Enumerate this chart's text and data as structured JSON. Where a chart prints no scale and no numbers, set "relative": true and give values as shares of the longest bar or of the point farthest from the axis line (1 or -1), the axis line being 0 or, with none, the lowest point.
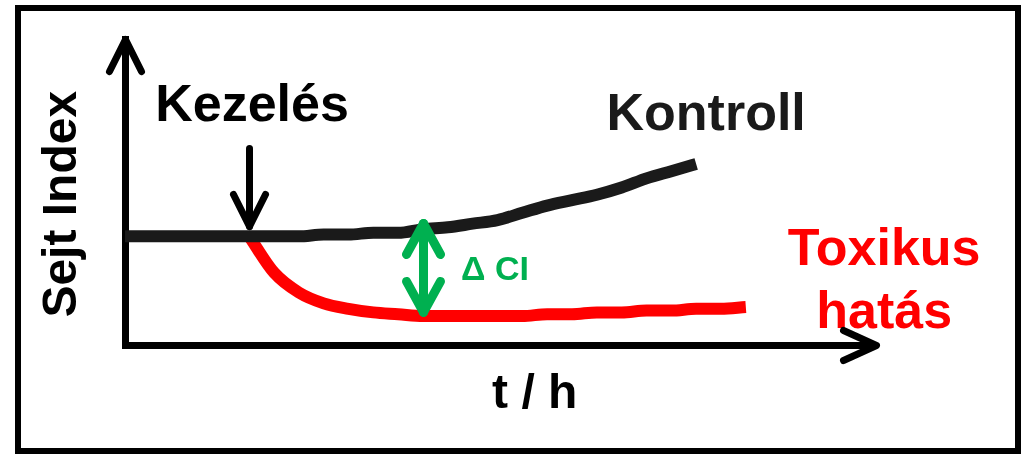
{
  "chart_data": {
    "type": "line",
    "relative": true,
    "xlabel": "t / h",
    "ylabel": "Sejt Index",
    "categories": [
      null,
      null,
      null,
      null,
      null,
      null,
      null,
      null,
      null,
      null,
      null,
      null,
      null,
      null,
      null,
      null,
      null,
      null,
      null,
      null,
      null,
      null,
      null,
      null,
      null,
      null,
      null,
      null,
      null,
      null,
      null
    ],
    "series": [
      {
        "name": "Kontroll",
        "color": "#1a1a1a",
        "values": [
          0.6,
          0.6,
          0.6,
          0.6,
          0.6,
          0.6,
          0.6,
          0.6,
          0.61,
          0.61,
          0.62,
          0.62,
          0.64,
          0.65,
          0.67,
          0.69,
          0.73,
          0.77,
          0.8,
          0.83,
          0.87,
          0.92,
          0.96,
          1,
          null,
          null,
          null,
          null,
          null,
          null,
          null
        ]
      },
      {
        "name": "Toxikus hatás",
        "color": "#ff0000",
        "values": [
          null,
          null,
          null,
          null,
          null,
          0.6,
          0.4,
          0.29,
          0.23,
          0.2,
          0.18,
          0.17,
          0.16,
          0.16,
          0.16,
          0.16,
          0.16,
          0.17,
          0.17,
          0.18,
          0.18,
          0.19,
          0.19,
          0.2,
          0.2,
          0.21,
          null,
          null,
          null,
          null,
          null
        ]
      }
    ],
    "annotations": [
      {
        "text": "Kezelés",
        "y": 0.6
      },
      "Δ CI"
    ]
  }
}
